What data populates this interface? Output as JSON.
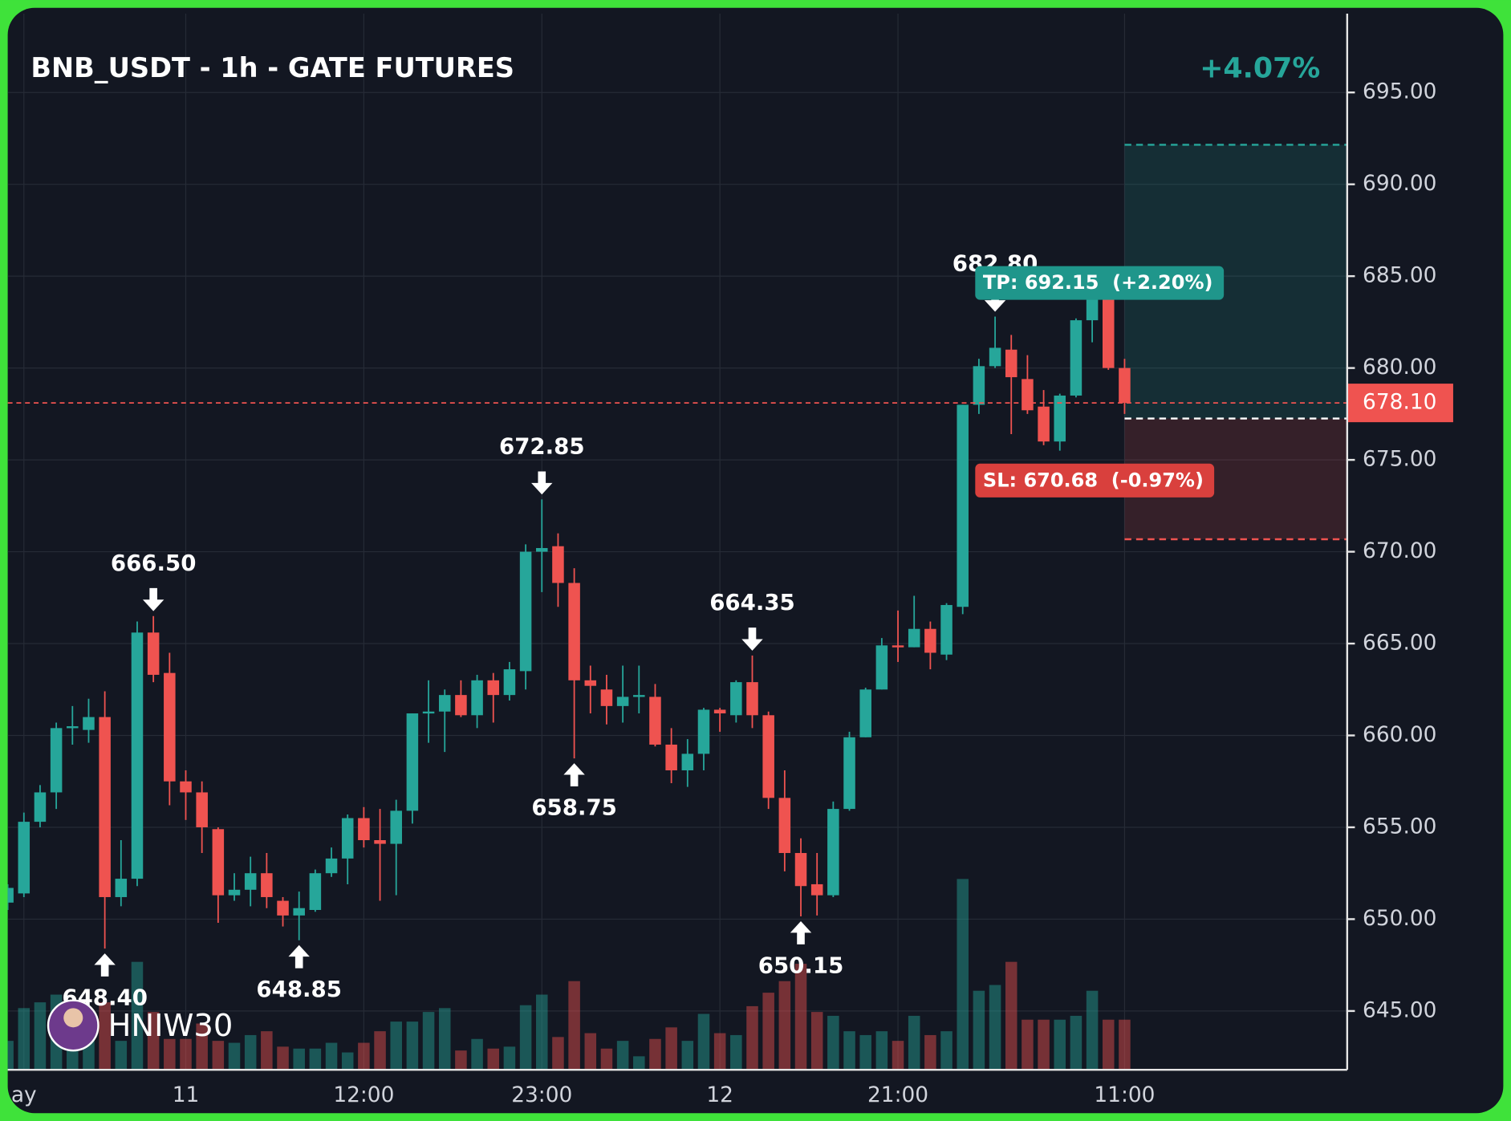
{
  "chart_data": {
    "type": "candlestick",
    "title": "BNB_USDT - 1h - GATE FUTURES",
    "change_label": "+4.07%",
    "watermark": "HNIW30",
    "categories": [
      null,
      "ay",
      null,
      null,
      null,
      null,
      null,
      null,
      null,
      null,
      null,
      "11",
      null,
      null,
      null,
      null,
      null,
      null,
      null,
      null,
      null,
      null,
      "12:00",
      null,
      null,
      null,
      null,
      null,
      null,
      null,
      null,
      null,
      null,
      "23:00",
      null,
      null,
      null,
      null,
      null,
      null,
      null,
      null,
      null,
      null,
      "12",
      null,
      null,
      null,
      null,
      null,
      null,
      null,
      null,
      null,
      null,
      "21:00",
      null,
      null,
      null,
      null,
      null,
      null,
      null,
      null,
      null,
      null,
      null,
      null,
      null,
      "11:00"
    ],
    "open": [
      650.9,
      651.4,
      655.3,
      656.9,
      660.4,
      660.3,
      661.0,
      651.2,
      652.2,
      665.6,
      663.4,
      657.5,
      656.9,
      654.9,
      651.3,
      651.6,
      652.5,
      651.0,
      650.2,
      650.5,
      652.5,
      653.3,
      655.5,
      654.3,
      654.1,
      655.9,
      661.2,
      661.3,
      662.2,
      661.1,
      663.0,
      662.2,
      663.5,
      670.0,
      670.3,
      668.3,
      663.0,
      662.5,
      661.6,
      662.1,
      662.1,
      659.5,
      658.1,
      659.0,
      661.4,
      661.1,
      662.9,
      661.1,
      656.6,
      653.6,
      651.9,
      651.3,
      656.0,
      659.9,
      662.5,
      664.9,
      664.8,
      665.8,
      664.4,
      667.0,
      678.0,
      680.1,
      681.0,
      679.4,
      677.9,
      676.0,
      678.5,
      682.6,
      684.3,
      680.0
    ],
    "high": [
      651.9,
      655.8,
      657.3,
      660.7,
      661.6,
      662.0,
      662.4,
      654.3,
      666.2,
      666.5,
      664.5,
      658.1,
      657.5,
      655.0,
      652.5,
      653.4,
      653.6,
      651.2,
      651.5,
      652.7,
      653.9,
      655.7,
      656.1,
      656.0,
      656.5,
      661.2,
      663.0,
      662.5,
      663.0,
      663.3,
      663.4,
      664.0,
      670.4,
      672.85,
      671.0,
      669.1,
      663.8,
      663.3,
      663.8,
      663.8,
      662.8,
      660.4,
      659.8,
      661.5,
      661.5,
      663.0,
      664.35,
      661.3,
      658.1,
      654.4,
      653.6,
      656.4,
      660.2,
      662.6,
      665.3,
      666.8,
      667.6,
      666.2,
      667.2,
      678.0,
      680.5,
      682.8,
      681.8,
      680.7,
      678.8,
      678.6,
      682.7,
      684.8,
      684.8,
      680.5
    ],
    "low": [
      650.5,
      651.2,
      655.0,
      656.0,
      659.5,
      659.6,
      648.4,
      650.7,
      651.8,
      662.9,
      656.2,
      655.4,
      653.6,
      649.8,
      651.0,
      650.7,
      650.6,
      649.6,
      648.85,
      650.4,
      652.3,
      651.9,
      653.9,
      651.0,
      651.3,
      655.2,
      659.6,
      659.1,
      661.0,
      660.4,
      660.7,
      661.9,
      662.5,
      667.8,
      667.0,
      658.75,
      661.2,
      660.6,
      660.7,
      661.2,
      659.4,
      657.4,
      657.2,
      658.1,
      660.2,
      660.7,
      660.4,
      656.0,
      652.6,
      650.15,
      650.2,
      651.2,
      655.9,
      659.9,
      662.5,
      664.0,
      664.8,
      663.6,
      664.1,
      666.6,
      677.5,
      680.0,
      676.4,
      677.5,
      675.8,
      675.5,
      678.4,
      681.4,
      679.9,
      677.5
    ],
    "close": [
      651.7,
      655.3,
      656.9,
      660.4,
      660.5,
      661.0,
      651.2,
      652.2,
      665.6,
      663.3,
      657.5,
      656.9,
      655.0,
      651.3,
      651.6,
      652.5,
      651.2,
      650.2,
      650.6,
      652.5,
      653.3,
      655.5,
      654.3,
      654.1,
      655.9,
      661.2,
      661.3,
      662.2,
      661.1,
      663.0,
      662.2,
      663.6,
      670.0,
      670.2,
      668.3,
      663.0,
      662.7,
      661.6,
      662.1,
      662.2,
      659.5,
      658.1,
      659.0,
      661.4,
      661.2,
      662.9,
      661.1,
      656.6,
      653.6,
      651.8,
      651.3,
      656.0,
      659.9,
      662.5,
      664.9,
      664.8,
      665.8,
      664.5,
      667.1,
      678.0,
      680.1,
      681.1,
      679.5,
      677.7,
      676.0,
      678.5,
      682.6,
      684.3,
      680.0,
      678.1
    ],
    "volume": [
      30,
      64,
      70,
      78,
      30,
      50,
      70,
      30,
      112,
      60,
      32,
      32,
      48,
      30,
      28,
      36,
      40,
      24,
      22,
      22,
      28,
      18,
      28,
      40,
      50,
      50,
      60,
      64,
      20,
      32,
      22,
      24,
      67,
      78,
      34,
      92,
      38,
      22,
      30,
      14,
      32,
      44,
      30,
      58,
      38,
      36,
      66,
      80,
      92,
      110,
      60,
      56,
      40,
      36,
      40,
      30,
      56,
      36,
      40,
      198,
      82,
      88,
      112,
      52,
      52,
      52,
      56,
      82,
      52,
      52
    ],
    "up_color": "#26a69a",
    "down_color": "#ef5350",
    "ylim": [
      641.8,
      699.5
    ],
    "yticks": [
      {
        "value": 645,
        "label": "645.00"
      },
      {
        "value": 650,
        "label": "650.00"
      },
      {
        "value": 655,
        "label": "655.00"
      },
      {
        "value": 660,
        "label": "660.00"
      },
      {
        "value": 665,
        "label": "665.00"
      },
      {
        "value": 670,
        "label": "670.00"
      },
      {
        "value": 675,
        "label": "675.00"
      },
      {
        "value": 680,
        "label": "680.00"
      },
      {
        "value": 685,
        "label": "685.00"
      },
      {
        "value": 690,
        "label": "690.00"
      },
      {
        "value": 695,
        "label": "695.00"
      }
    ],
    "grid": true,
    "last_price": {
      "value": 678.1,
      "label": "678.10"
    },
    "peak_labels": [
      {
        "value": 666.5,
        "label": "666.50"
      },
      {
        "value": 672.85,
        "label": "672.85"
      },
      {
        "value": 664.35,
        "label": "664.35"
      },
      {
        "value": 682.8,
        "label": "682.80"
      }
    ],
    "trough_labels": [
      {
        "value": 648.4,
        "label": "648.40"
      },
      {
        "value": 648.85,
        "label": "648.85"
      },
      {
        "value": 658.75,
        "label": "658.75"
      },
      {
        "value": 650.15,
        "label": "650.15"
      }
    ],
    "position": {
      "entry": 677.25,
      "take_profit": 692.15,
      "stop_loss": 670.68,
      "tp_label": "TP: 692.15  (+2.20%)",
      "sl_label": "SL: 670.68  (-0.97%)"
    }
  }
}
